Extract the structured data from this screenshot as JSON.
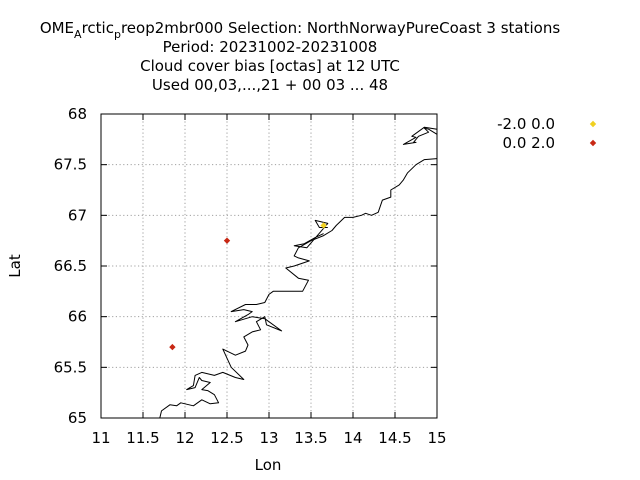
{
  "chart_data": {
    "type": "scatter",
    "title_lines": [
      {
        "parts": [
          {
            "text": "OME",
            "shift": "none"
          },
          {
            "text": "A",
            "shift": "sub"
          },
          {
            "text": "rctic",
            "shift": "none"
          },
          {
            "text": "p",
            "shift": "sub"
          },
          {
            "text": "reop2mbr000   Selection: NorthNorwayPureCoast      3 stations",
            "shift": "none"
          }
        ]
      },
      {
        "text": "Period: 20231002-20231008"
      },
      {
        "text": "Cloud cover bias [octas] at  12 UTC"
      },
      {
        "text": "Used  00,03,...,21  + 00 03 ... 48"
      }
    ],
    "xlabel": "Lon",
    "ylabel": "Lat",
    "xlim": [
      11,
      15
    ],
    "ylim": [
      65,
      68
    ],
    "x_ticks": [
      {
        "value": 11,
        "label": "11"
      },
      {
        "value": 11.5,
        "label": "11.5"
      },
      {
        "value": 12,
        "label": "12"
      },
      {
        "value": 12.5,
        "label": "12.5"
      },
      {
        "value": 13,
        "label": "13"
      },
      {
        "value": 13.5,
        "label": "13.5"
      },
      {
        "value": 14,
        "label": "14"
      },
      {
        "value": 14.5,
        "label": "14.5"
      },
      {
        "value": 15,
        "label": "15"
      }
    ],
    "y_ticks": [
      {
        "value": 65,
        "label": "65"
      },
      {
        "value": 65.5,
        "label": "65.5"
      },
      {
        "value": 66,
        "label": "66"
      },
      {
        "value": 66.5,
        "label": "66.5"
      },
      {
        "value": 67,
        "label": "67"
      },
      {
        "value": 67.5,
        "label": "67.5"
      },
      {
        "value": 68,
        "label": "68"
      }
    ],
    "grid": true,
    "legend_position": "outside-right-top",
    "series": [
      {
        "name": "-2.0 0.0",
        "color": "#f0d020",
        "points": [
          {
            "x": 13.65,
            "y": 66.9
          }
        ]
      },
      {
        "name": "0.0 2.0",
        "color": "#c82814",
        "points": [
          {
            "x": 12.5,
            "y": 66.75
          },
          {
            "x": 11.85,
            "y": 65.7
          }
        ]
      }
    ],
    "coastline": [
      [
        [
          11.7,
          65.0
        ],
        [
          11.72,
          65.07
        ],
        [
          11.82,
          65.13
        ],
        [
          11.9,
          65.12
        ],
        [
          11.95,
          65.15
        ],
        [
          12.1,
          65.12
        ],
        [
          12.2,
          65.18
        ],
        [
          12.3,
          65.14
        ],
        [
          12.4,
          65.15
        ],
        [
          12.35,
          65.23
        ],
        [
          12.27,
          65.27
        ],
        [
          12.2,
          65.28
        ],
        [
          12.3,
          65.35
        ],
        [
          12.2,
          65.37
        ],
        [
          12.17,
          65.4
        ],
        [
          12.12,
          65.3
        ],
        [
          12.02,
          65.28
        ],
        [
          12.1,
          65.32
        ],
        [
          12.12,
          65.42
        ],
        [
          12.2,
          65.45
        ],
        [
          12.35,
          65.42
        ],
        [
          12.45,
          65.45
        ],
        [
          12.6,
          65.4
        ],
        [
          12.7,
          65.38
        ],
        [
          12.55,
          65.5
        ],
        [
          12.45,
          65.68
        ],
        [
          12.6,
          65.62
        ],
        [
          12.72,
          65.66
        ],
        [
          12.75,
          65.72
        ],
        [
          12.7,
          65.8
        ],
        [
          12.8,
          65.85
        ],
        [
          12.9,
          65.87
        ],
        [
          12.85,
          65.95
        ],
        [
          12.95,
          66.0
        ],
        [
          12.97,
          65.92
        ],
        [
          13.15,
          65.86
        ],
        [
          12.95,
          65.98
        ],
        [
          12.8,
          66.0
        ],
        [
          12.6,
          65.95
        ],
        [
          12.75,
          66.02
        ],
        [
          12.8,
          66.05
        ],
        [
          12.7,
          66.07
        ],
        [
          12.55,
          66.05
        ],
        [
          12.72,
          66.12
        ],
        [
          12.85,
          66.12
        ],
        [
          12.95,
          66.14
        ],
        [
          13.0,
          66.22
        ],
        [
          13.05,
          66.25
        ],
        [
          13.4,
          66.25
        ],
        [
          13.47,
          66.36
        ],
        [
          13.35,
          66.38
        ],
        [
          13.2,
          66.48
        ],
        [
          13.3,
          66.5
        ],
        [
          13.48,
          66.55
        ],
        [
          13.35,
          66.58
        ],
        [
          13.3,
          66.6
        ],
        [
          13.35,
          66.68
        ],
        [
          13.5,
          66.75
        ],
        [
          13.65,
          66.8
        ],
        [
          13.75,
          66.85
        ],
        [
          13.8,
          66.9
        ],
        [
          13.9,
          66.98
        ],
        [
          14.0,
          66.98
        ],
        [
          14.1,
          67.0
        ],
        [
          14.15,
          67.02
        ],
        [
          14.22,
          67.0
        ],
        [
          14.3,
          67.03
        ],
        [
          14.35,
          67.15
        ],
        [
          14.45,
          67.18
        ],
        [
          14.45,
          67.25
        ],
        [
          14.55,
          67.3
        ],
        [
          14.6,
          67.35
        ],
        [
          14.65,
          67.42
        ],
        [
          14.75,
          67.5
        ],
        [
          14.85,
          67.55
        ],
        [
          15.0,
          67.56
        ]
      ],
      [
        [
          13.65,
          66.82
        ],
        [
          13.55,
          66.78
        ],
        [
          13.42,
          66.72
        ],
        [
          13.3,
          66.7
        ],
        [
          13.45,
          66.68
        ],
        [
          13.7,
          66.92
        ],
        [
          13.55,
          66.95
        ],
        [
          13.6,
          66.88
        ],
        [
          13.7,
          66.88
        ]
      ],
      [
        [
          15.0,
          67.8
        ],
        [
          14.9,
          67.85
        ],
        [
          14.85,
          67.86
        ],
        [
          14.9,
          67.82
        ],
        [
          14.78,
          67.78
        ],
        [
          14.72,
          67.72
        ],
        [
          14.75,
          67.72
        ],
        [
          14.6,
          67.7
        ],
        [
          14.75,
          67.77
        ],
        [
          14.7,
          67.78
        ],
        [
          14.85,
          67.87
        ],
        [
          15.0,
          67.85
        ]
      ]
    ]
  }
}
